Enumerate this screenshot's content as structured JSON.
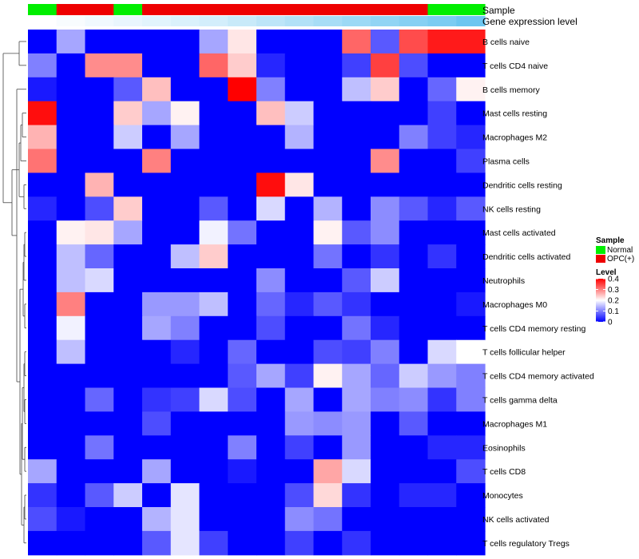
{
  "chart_data": {
    "type": "heatmap",
    "annotations": [
      {
        "name": "Sample",
        "values": [
          "Normal",
          "OPC(+)",
          "OPC(+)",
          "Normal",
          "OPC(+)",
          "OPC(+)",
          "OPC(+)",
          "OPC(+)",
          "OPC(+)",
          "OPC(+)",
          "OPC(+)",
          "OPC(+)",
          "OPC(+)",
          "OPC(+)",
          "Normal",
          "Normal"
        ],
        "colors": {
          "Normal": "#00ee00",
          "OPC(+)": "#ee0000"
        }
      },
      {
        "name": "Gene expression level",
        "values": [
          0.0,
          0.02,
          0.04,
          0.06,
          0.08,
          0.1,
          0.12,
          0.15,
          0.18,
          0.21,
          0.24,
          0.27,
          0.3,
          0.33,
          0.36,
          0.4
        ],
        "colors": {
          "low": "#ffffff",
          "high": "#6cc6f0"
        }
      }
    ],
    "rows": [
      "B cells naive",
      "T cells CD4 naive",
      "B cells memory",
      "Mast cells resting",
      "Macrophages M2",
      "Plasma cells",
      "Dendritic cells resting",
      "NK cells resting",
      "Mast cells activated",
      "Dendritic cells activated",
      "Neutrophils",
      "Macrophages M0",
      "T cells CD4 memory resting",
      "T cells follicular helper",
      "T cells CD4 memory activated",
      "T cells gamma delta",
      "Macrophages M1",
      "Eosinophils",
      "T cells CD8",
      "Monocytes",
      "NK cells activated",
      "T cells regulatory  Tregs"
    ],
    "n_cols": 16,
    "values": [
      [
        0.0,
        0.13,
        0.0,
        0.0,
        0.0,
        0.0,
        0.13,
        0.22,
        0.0,
        0.0,
        0.0,
        0.32,
        0.07,
        0.34,
        0.38,
        0.38
      ],
      [
        0.1,
        0.0,
        0.29,
        0.29,
        0.0,
        0.0,
        0.32,
        0.24,
        0.03,
        0.0,
        0.0,
        0.05,
        0.35,
        0.06,
        0.0,
        0.0
      ],
      [
        0.02,
        0.0,
        0.0,
        0.07,
        0.25,
        0.0,
        0.0,
        0.4,
        0.1,
        0.0,
        0.0,
        0.15,
        0.24,
        0.0,
        0.08,
        0.21
      ],
      [
        0.39,
        0.0,
        0.0,
        0.24,
        0.13,
        0.21,
        0.0,
        0.0,
        0.25,
        0.16,
        0.0,
        0.0,
        0.0,
        0.0,
        0.05,
        0.0
      ],
      [
        0.26,
        0.0,
        0.0,
        0.16,
        0.0,
        0.13,
        0.0,
        0.0,
        0.0,
        0.14,
        0.0,
        0.0,
        0.0,
        0.1,
        0.05,
        0.03
      ],
      [
        0.31,
        0.0,
        0.0,
        0.0,
        0.3,
        0.0,
        0.0,
        0.0,
        0.0,
        0.0,
        0.0,
        0.0,
        0.29,
        0.0,
        0.0,
        0.05
      ],
      [
        0.0,
        0.0,
        0.26,
        0.0,
        0.0,
        0.0,
        0.0,
        0.0,
        0.39,
        0.22,
        0.0,
        0.0,
        0.0,
        0.0,
        0.0,
        0.0
      ],
      [
        0.03,
        0.0,
        0.06,
        0.24,
        0.0,
        0.0,
        0.07,
        0.0,
        0.17,
        0.0,
        0.14,
        0.0,
        0.11,
        0.07,
        0.03,
        0.07
      ],
      [
        0.0,
        0.21,
        0.22,
        0.13,
        0.0,
        0.0,
        0.19,
        0.09,
        0.0,
        0.0,
        0.21,
        0.07,
        0.11,
        0.0,
        0.0,
        0.0
      ],
      [
        0.0,
        0.15,
        0.08,
        0.0,
        0.0,
        0.15,
        0.24,
        0.0,
        0.0,
        0.0,
        0.09,
        0.0,
        0.04,
        0.0,
        0.04,
        0.0
      ],
      [
        0.0,
        0.15,
        0.17,
        0.0,
        0.0,
        0.0,
        0.0,
        0.0,
        0.11,
        0.0,
        0.0,
        0.07,
        0.16,
        0.0,
        0.0,
        0.0
      ],
      [
        0.0,
        0.3,
        0.0,
        0.0,
        0.12,
        0.12,
        0.15,
        0.0,
        0.08,
        0.03,
        0.07,
        0.04,
        0.0,
        0.0,
        0.0,
        0.02
      ],
      [
        0.0,
        0.19,
        0.0,
        0.0,
        0.13,
        0.1,
        0.0,
        0.0,
        0.06,
        0.0,
        0.0,
        0.09,
        0.03,
        0.0,
        0.0,
        0.0
      ],
      [
        0.0,
        0.15,
        0.0,
        0.0,
        0.0,
        0.03,
        0.0,
        0.08,
        0.0,
        0.0,
        0.06,
        0.05,
        0.1,
        0.0,
        0.17,
        0.2
      ],
      [
        0.0,
        0.0,
        0.0,
        0.0,
        0.0,
        0.0,
        0.0,
        0.07,
        0.13,
        0.05,
        0.21,
        0.13,
        0.08,
        0.16,
        0.12,
        0.1
      ],
      [
        0.0,
        0.0,
        0.08,
        0.0,
        0.04,
        0.05,
        0.17,
        0.06,
        0.0,
        0.13,
        0.0,
        0.13,
        0.1,
        0.11,
        0.04,
        0.1
      ],
      [
        0.0,
        0.0,
        0.0,
        0.0,
        0.06,
        0.0,
        0.0,
        0.0,
        0.0,
        0.12,
        0.11,
        0.12,
        0.0,
        0.07,
        0.0,
        0.0
      ],
      [
        0.0,
        0.0,
        0.09,
        0.0,
        0.0,
        0.0,
        0.0,
        0.1,
        0.0,
        0.05,
        0.0,
        0.12,
        0.0,
        0.0,
        0.03,
        0.03
      ],
      [
        0.13,
        0.0,
        0.0,
        0.0,
        0.13,
        0.0,
        0.0,
        0.02,
        0.0,
        0.0,
        0.27,
        0.17,
        0.0,
        0.0,
        0.0,
        0.06
      ],
      [
        0.04,
        0.0,
        0.07,
        0.16,
        0.0,
        0.18,
        0.0,
        0.0,
        0.0,
        0.06,
        0.23,
        0.04,
        0.0,
        0.03,
        0.03,
        0.0
      ],
      [
        0.06,
        0.02,
        0.0,
        0.0,
        0.14,
        0.18,
        0.0,
        0.0,
        0.0,
        0.11,
        0.09,
        0.0,
        0.0,
        0.0,
        0.0,
        0.0
      ],
      [
        0.0,
        0.0,
        0.0,
        0.0,
        0.07,
        0.18,
        0.05,
        0.0,
        0.0,
        0.05,
        0.0,
        0.04,
        0.0,
        0.0,
        0.0,
        0.0
      ]
    ],
    "color_scale": {
      "low": "#0000ff",
      "mid": "#ffffff",
      "high": "#ff0000",
      "min": 0,
      "mid_value": 0.2,
      "max": 0.4
    },
    "legend": {
      "sample_title": "Sample",
      "sample_items": [
        {
          "label": "Normal",
          "color": "#00ee00"
        },
        {
          "label": "OPC(+)",
          "color": "#ee0000"
        }
      ],
      "level_title": "Level",
      "level_ticks": [
        "0.4",
        "0.3",
        "0.2",
        "0.1",
        "0"
      ],
      "placement": "right"
    },
    "row_dendrogram": true
  }
}
